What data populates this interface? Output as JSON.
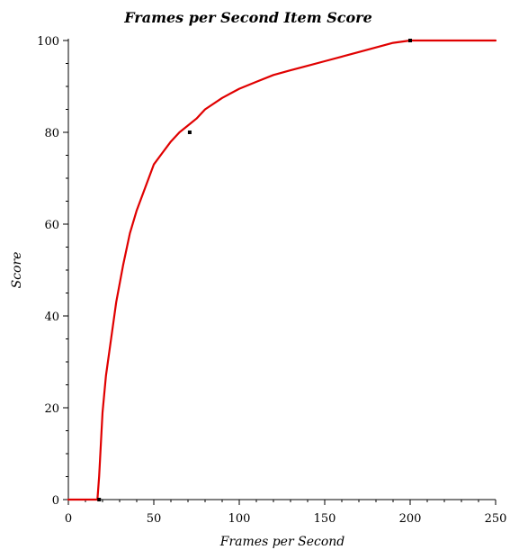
{
  "chart_data": {
    "type": "line",
    "title": "Frames per Second Item Score",
    "xlabel": "Frames per Second",
    "ylabel": "Score",
    "xlim": [
      0,
      250
    ],
    "ylim": [
      0,
      100
    ],
    "xticks": [
      0,
      50,
      100,
      150,
      200,
      250
    ],
    "yticks": [
      0,
      20,
      40,
      60,
      80,
      100
    ],
    "xtick_labels": [
      "0",
      "50",
      "100",
      "150",
      "200",
      "250"
    ],
    "ytick_labels": [
      "0",
      "20",
      "40",
      "60",
      "80",
      "100"
    ],
    "grid": false,
    "series": [
      {
        "color": "#e00000",
        "x": [
          0,
          17,
          18,
          19,
          20,
          22,
          25,
          28,
          32,
          36,
          40,
          45,
          50,
          55,
          60,
          65,
          70,
          75,
          80,
          90,
          100,
          110,
          120,
          130,
          140,
          150,
          160,
          170,
          180,
          190,
          200,
          210,
          220,
          230,
          240,
          250
        ],
        "y": [
          0,
          0,
          5,
          12,
          19,
          27,
          35,
          43,
          51,
          58,
          63,
          68,
          73,
          75.5,
          78,
          80,
          81.5,
          83,
          85,
          87.5,
          89.5,
          91,
          92.5,
          93.5,
          94.5,
          95.5,
          96.5,
          97.5,
          98.5,
          99.5,
          100,
          100,
          100,
          100,
          100,
          100
        ]
      }
    ],
    "markers": {
      "color": "#000000",
      "points": [
        {
          "x": 18,
          "y": 0
        },
        {
          "x": 71,
          "y": 80
        },
        {
          "x": 200,
          "y": 100
        }
      ]
    }
  }
}
